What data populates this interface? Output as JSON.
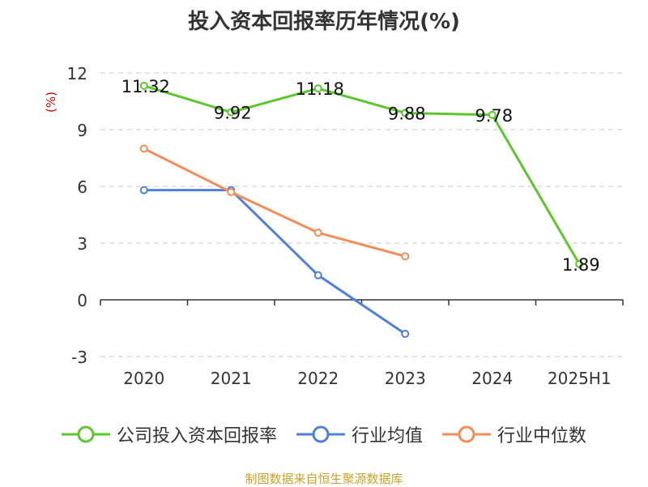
{
  "title": "投入资本回报率历年情况(%)",
  "source": "制图数据来自恒生聚源数据库",
  "chart_data": {
    "type": "line",
    "title": "投入资本回报率历年情况(%)",
    "ylabel": "(%)",
    "xlabel": "",
    "categories": [
      "2020",
      "2021",
      "2022",
      "2023",
      "2024",
      "2025H1"
    ],
    "ylim": [
      -3,
      12
    ],
    "yticks": [
      -3,
      0,
      3,
      6,
      9,
      12
    ],
    "grid": "horizontal-dashed",
    "legend_position": "bottom",
    "series": [
      {
        "name": "公司投入资本回报率",
        "color": "#5cc72c",
        "values": [
          11.32,
          9.92,
          11.18,
          9.88,
          9.78,
          1.89
        ],
        "labels": [
          "11.32",
          "9.92",
          "11.18",
          "9.88",
          "9.78",
          "1.89"
        ]
      },
      {
        "name": "行业均值",
        "color": "#4f7fdc",
        "values": [
          5.8,
          5.8,
          1.3,
          -1.8,
          null,
          null
        ]
      },
      {
        "name": "行业中位数",
        "color": "#f58c58",
        "values": [
          8.0,
          5.7,
          3.55,
          2.3,
          null,
          null
        ]
      }
    ]
  }
}
